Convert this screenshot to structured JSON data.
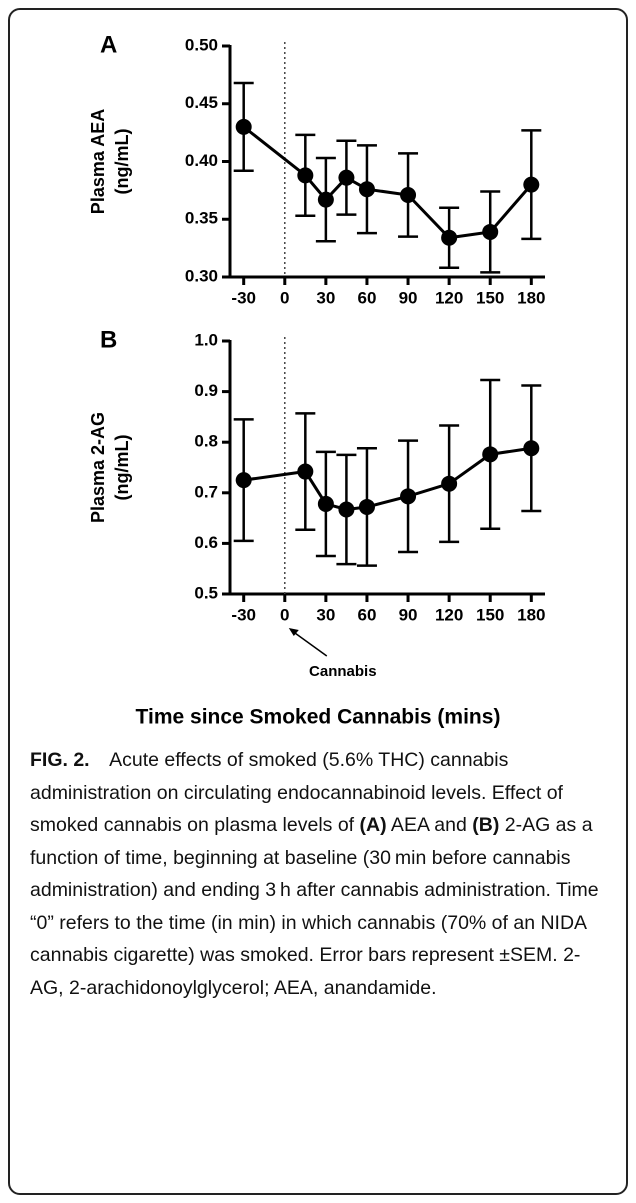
{
  "chart_data": [
    {
      "type": "line",
      "panel": "A",
      "ylabel": "Plasma AEA",
      "ylabel_unit": "(ng/mL)",
      "x": [
        -30,
        15,
        30,
        45,
        60,
        90,
        120,
        150,
        180
      ],
      "values": [
        0.43,
        0.388,
        0.367,
        0.386,
        0.376,
        0.371,
        0.334,
        0.339,
        0.38
      ],
      "errors": [
        0.038,
        0.035,
        0.036,
        0.032,
        0.038,
        0.036,
        0.026,
        0.035,
        0.047
      ],
      "color": "#000000",
      "xlim": [
        -40,
        190
      ],
      "xticks": [
        -30,
        0,
        30,
        60,
        90,
        120,
        150,
        180
      ],
      "ylim": [
        0.3,
        0.5
      ],
      "yticks": [
        {
          "value": 0.3,
          "label": "0.30"
        },
        0.35,
        {
          "value": 0.4,
          "label": "0.40"
        },
        0.45,
        {
          "value": 0.5,
          "label": "0.50"
        }
      ],
      "vline": 0
    },
    {
      "type": "line",
      "panel": "B",
      "ylabel": "Plasma 2-AG",
      "ylabel_unit": "(ng/mL)",
      "x": [
        -30,
        15,
        30,
        45,
        60,
        90,
        120,
        150,
        180
      ],
      "values": [
        0.725,
        0.742,
        0.678,
        0.667,
        0.672,
        0.693,
        0.718,
        0.776,
        0.788
      ],
      "errors": [
        0.12,
        0.115,
        0.103,
        0.108,
        0.116,
        0.11,
        0.115,
        0.147,
        0.124
      ],
      "color": "#000000",
      "xlim": [
        -40,
        190
      ],
      "xticks": [
        -30,
        0,
        30,
        60,
        90,
        120,
        150,
        180
      ],
      "ylim": [
        0.5,
        1.0
      ],
      "yticks": [
        0.5,
        0.6,
        0.7,
        0.8,
        0.9,
        {
          "value": 1.0,
          "label": "1.0"
        }
      ],
      "vline": 0,
      "annotation": "Cannabis",
      "xlabel": "Time since Smoked Cannabis (mins)"
    }
  ],
  "caption": [
    {
      "text": "FIG. 2.",
      "bold": true
    },
    {
      "text": " Acute effects of smoked (5.6% THC) cannabis administration on circulating endocannabinoid levels. Effect of smoked cannabis on plasma levels of ",
      "bold": false
    },
    {
      "text": "(A)",
      "bold": true
    },
    {
      "text": " AEA and ",
      "bold": false
    },
    {
      "text": "(B)",
      "bold": true
    },
    {
      "text": " 2-AG as a function of time, beginning at baseline (30 min before cannabis administration) and ending 3 h after cannabis administration. Time “0” refers to the time (in min) in which cannabis (70% of an NIDA cannabis cigarette) was smoked. Error bars represent ±SEM. 2-AG, 2-arachidonoylglycerol; AEA, anandamide.",
      "bold": false
    }
  ]
}
